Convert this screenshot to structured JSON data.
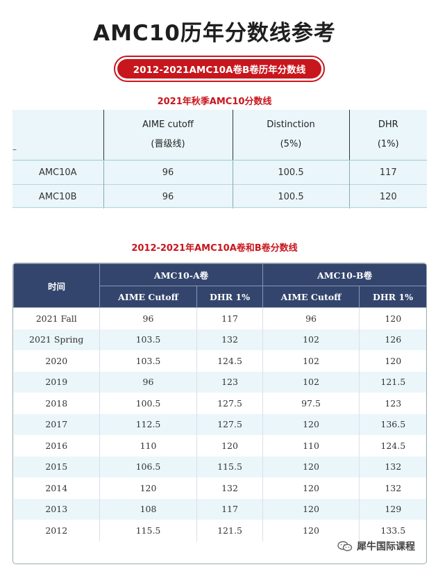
{
  "title": "AMC10历年分数线参考",
  "banner": "2012-2021AMC10A卷B卷历年分数线",
  "section1": {
    "heading": "2021年秋季AMC10分数线",
    "corner": "–",
    "columns": [
      {
        "line1": "AIME cutoff",
        "line2": "(晋级线)"
      },
      {
        "line1": "Distinction",
        "line2": "(5%)"
      },
      {
        "line1": "DHR",
        "line2": "(1%)"
      }
    ],
    "rows": [
      {
        "name": "AMC10A",
        "aime": "96",
        "dist": "100.5",
        "dhr": "117"
      },
      {
        "name": "AMC10B",
        "aime": "96",
        "dist": "100.5",
        "dhr": "120"
      }
    ]
  },
  "section2": {
    "heading": "2012-2021年AMC10A卷和B卷分数线",
    "time_header": "时间",
    "group_a": "AMC10-A卷",
    "group_b": "AMC10-B卷",
    "sub_aime": "AIME Cutoff",
    "sub_dhr": "DHR 1%",
    "rows": [
      {
        "time": "2021 Fall",
        "a_aime": "96",
        "a_dhr": "117",
        "b_aime": "96",
        "b_dhr": "120"
      },
      {
        "time": "2021 Spring",
        "a_aime": "103.5",
        "a_dhr": "132",
        "b_aime": "102",
        "b_dhr": "126"
      },
      {
        "time": "2020",
        "a_aime": "103.5",
        "a_dhr": "124.5",
        "b_aime": "102",
        "b_dhr": "120"
      },
      {
        "time": "2019",
        "a_aime": "96",
        "a_dhr": "123",
        "b_aime": "102",
        "b_dhr": "121.5"
      },
      {
        "time": "2018",
        "a_aime": "100.5",
        "a_dhr": "127.5",
        "b_aime": "97.5",
        "b_dhr": "123"
      },
      {
        "time": "2017",
        "a_aime": "112.5",
        "a_dhr": "127.5",
        "b_aime": "120",
        "b_dhr": "136.5"
      },
      {
        "time": "2016",
        "a_aime": "110",
        "a_dhr": "120",
        "b_aime": "110",
        "b_dhr": "124.5"
      },
      {
        "time": "2015",
        "a_aime": "106.5",
        "a_dhr": "115.5",
        "b_aime": "120",
        "b_dhr": "132"
      },
      {
        "time": "2014",
        "a_aime": "120",
        "a_dhr": "132",
        "b_aime": "120",
        "b_dhr": "132"
      },
      {
        "time": "2013",
        "a_aime": "108",
        "a_dhr": "117",
        "b_aime": "120",
        "b_dhr": "129"
      },
      {
        "time": "2012",
        "a_aime": "115.5",
        "a_dhr": "121.5",
        "b_aime": "120",
        "b_dhr": "133.5"
      }
    ]
  },
  "watermark": {
    "icon": "wechat-icon",
    "text": "犀牛国际课程"
  },
  "colors": {
    "accent_red": "#c8161d",
    "header_navy": "#33456d",
    "stripe": "#eaf6fa"
  }
}
